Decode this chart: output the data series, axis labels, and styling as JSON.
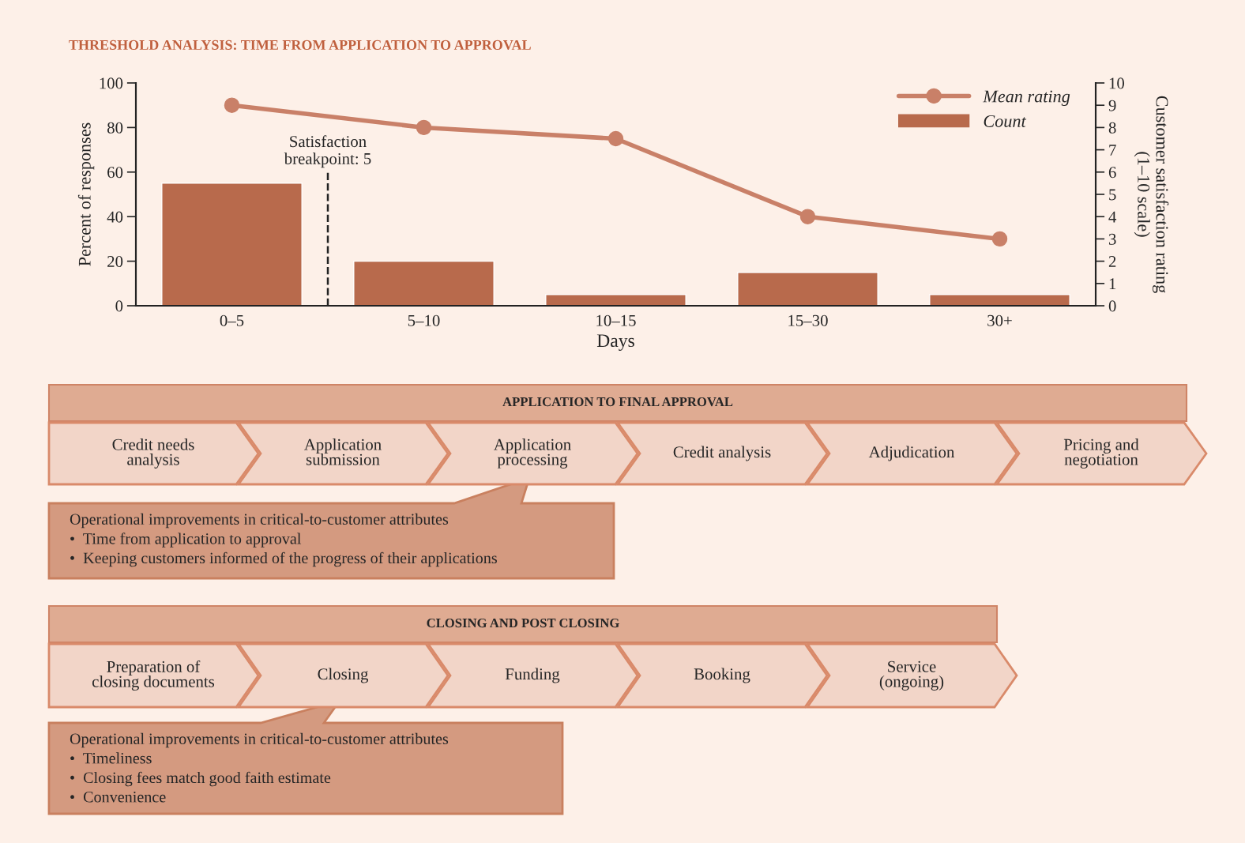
{
  "chart_data": [
    {
      "type": "bar",
      "title": "THRESHOLD ANALYSIS: TIME FROM APPLICATION TO APPROVAL",
      "xlabel": "Days",
      "ylabel": "Percent of responses",
      "y2label": "Customer satisfaction rating\n(1–10 scale)",
      "categories": [
        "0–5",
        "5–10",
        "10–15",
        "15–30",
        "30+"
      ],
      "series": [
        {
          "name": "Count",
          "type": "bar",
          "color": "#b86a4c",
          "values": [
            55,
            20,
            5,
            15,
            5
          ]
        },
        {
          "name": "Mean rating",
          "type": "line",
          "axis": "y2",
          "color": "#c98068",
          "values": [
            9,
            8,
            7.5,
            4,
            3
          ]
        }
      ],
      "ylim": [
        0,
        100
      ],
      "yticks": [
        0,
        20,
        40,
        60,
        80,
        100
      ],
      "y2lim": [
        0,
        10
      ],
      "y2ticks": [
        0,
        1,
        2,
        3,
        4,
        5,
        6,
        7,
        8,
        9,
        10
      ],
      "annotations": [
        "Satisfaction\nbreakpoint: 5"
      ],
      "legend": "top right",
      "marker": "circle",
      "grid": false
    },
    {
      "type": "other",
      "title": "APPLICATION TO FINAL APPROVAL",
      "categories": [
        "Credit needs\nanalysis",
        "Application\nsubmission",
        "Application\nprocessing",
        "Credit analysis",
        "Adjudication",
        "Pricing and\nnegotiation"
      ],
      "annotations": [
        "Operational improvements in critical-to-customer attributes",
        "•  Time from application to approval",
        "•  Keeping customers informed of the progress of their applications"
      ]
    },
    {
      "type": "other",
      "title": "CLOSING AND POST CLOSING",
      "categories": [
        "Preparation of\nclosing documents",
        "Closing",
        "Funding",
        "Booking",
        "Service\n(ongoing)"
      ],
      "annotations": [
        "Operational improvements in critical-to-customer attributes",
        "•  Timeliness",
        "•  Closing fees match good faith estimate",
        "•  Convenience"
      ]
    }
  ]
}
